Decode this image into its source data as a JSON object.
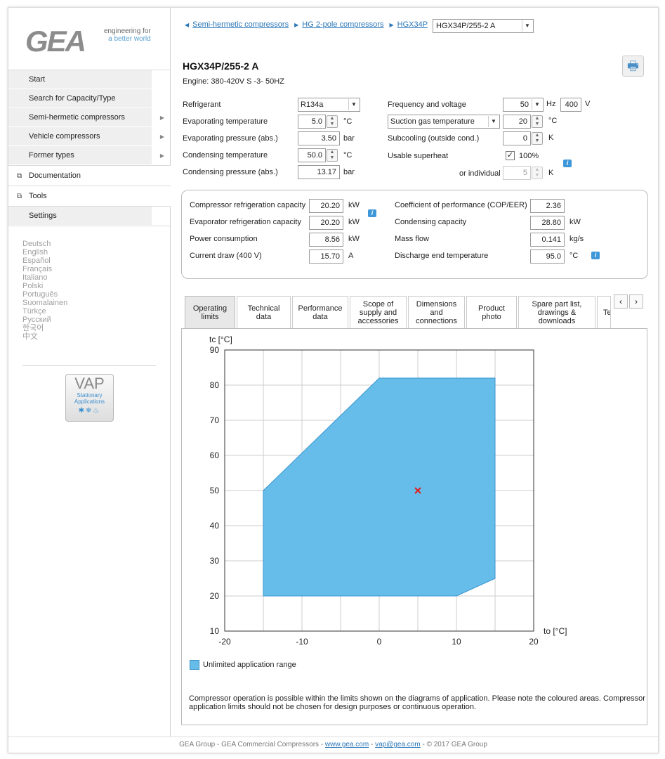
{
  "logo": {
    "text": "GEA",
    "tag1": "engineering for",
    "tag2": "a better world"
  },
  "nav": {
    "items": [
      "Start",
      "Search for Capacity/Type",
      "Semi-hermetic compressors",
      "Vehicle compressors",
      "Former types"
    ],
    "documentation": "Documentation",
    "tools": "Tools",
    "settings": "Settings"
  },
  "languages": [
    "Deutsch",
    "English",
    "Español",
    "Français",
    "Italiano",
    "Polski",
    "Português",
    "Suomalainen",
    "Türkçe",
    "Русский",
    "한국어",
    "中文"
  ],
  "vap": {
    "title": "VAP",
    "sub1": "Stationary",
    "sub2": "Applications"
  },
  "breadcrumb": {
    "b1": "Semi-hermetic compressors",
    "b2": "HG 2-pole compressors",
    "b3": "HGX34P",
    "selected": "HGX34P/255-2 A"
  },
  "title": "HGX34P/255-2 A",
  "engine": "Engine: 380-420V S -3- 50HZ",
  "inputs": {
    "refrigerant_label": "Refrigerant",
    "refrigerant": "R134a",
    "evap_temp_label": "Evaporating temperature",
    "evap_temp": "5.0",
    "evap_temp_unit": "°C",
    "evap_press_label": "Evaporating pressure (abs.)",
    "evap_press": "3.50",
    "evap_press_unit": "bar",
    "cond_temp_label": "Condensing temperature",
    "cond_temp": "50.0",
    "cond_temp_unit": "°C",
    "cond_press_label": "Condensing pressure (abs.)",
    "cond_press": "13.17",
    "cond_press_unit": "bar",
    "freq_label": "Frequency and voltage",
    "freq": "50",
    "freq_unit": "Hz",
    "volt": "400",
    "volt_unit": "V",
    "suction_select": "Suction gas temperature",
    "suction": "20",
    "suction_unit": "°C",
    "subcool_label": "Subcooling (outside cond.)",
    "subcool": "0",
    "subcool_unit": "K",
    "superheat_label": "Usable superheat",
    "superheat_check": "✓",
    "superheat_pct": "100%",
    "individual_label": "or individual",
    "individual": "5",
    "individual_unit": "K"
  },
  "results": {
    "crc_label": "Compressor refrigeration capacity",
    "crc": "20.20",
    "crc_unit": "kW",
    "erc_label": "Evaporator refrigeration capacity",
    "erc": "20.20",
    "erc_unit": "kW",
    "power_label": "Power consumption",
    "power": "8.56",
    "power_unit": "kW",
    "current_label": "Current draw (400 V)",
    "current": "15.70",
    "current_unit": "A",
    "cop_label": "Coefficient of performance (COP/EER)",
    "cop": "2.36",
    "condcap_label": "Condensing capacity",
    "condcap": "28.80",
    "condcap_unit": "kW",
    "mass_label": "Mass flow",
    "mass": "0.141",
    "mass_unit": "kg/s",
    "discharge_label": "Discharge end temperature",
    "discharge": "95.0",
    "discharge_unit": "°C"
  },
  "tabs": {
    "t1a": "Operating",
    "t1b": "limits",
    "t2a": "Technical",
    "t2b": "data",
    "t3a": "Performance",
    "t3b": "data",
    "t4a": "Scope of",
    "t4b": "supply and",
    "t4c": "accessories",
    "t5a": "Dimensions",
    "t5b": "and",
    "t5c": "connections",
    "t6a": "Product",
    "t6b": "photo",
    "t7a": "Spare part list,",
    "t7b": "drawings &",
    "t7c": "downloads",
    "t8": "Te",
    "prev": "‹",
    "next": "›"
  },
  "chart_data": {
    "type": "area",
    "xlabel": "to [°C]",
    "ylabel": "tc [°C]",
    "xlim": [
      -20,
      20
    ],
    "ylim": [
      10,
      90
    ],
    "xticks": [
      -20,
      -10,
      0,
      10,
      20
    ],
    "yticks": [
      10,
      20,
      30,
      40,
      50,
      60,
      70,
      80,
      90
    ],
    "grid": true,
    "series": [
      {
        "name": "Unlimited application range",
        "color": "#66bdea",
        "polygon": [
          [
            -15,
            20
          ],
          [
            -15,
            50
          ],
          [
            0,
            82
          ],
          [
            15,
            82
          ],
          [
            15,
            25
          ],
          [
            10,
            20
          ]
        ]
      }
    ],
    "operating_point": {
      "x": 5,
      "y": 50,
      "color": "#e02020"
    },
    "legend": "bottom-left"
  },
  "note": "Compressor operation is possible within the limits shown on the diagrams of application. Please note the coloured areas. Compressor application limits should not be chosen for design purposes or continuous operation.",
  "footer": {
    "pre": "GEA Group - GEA Commercial Compressors - ",
    "web": "www.gea.com",
    "mid": " - ",
    "mail": "vap@gea.com",
    "post": " - © 2017 GEA Group"
  }
}
